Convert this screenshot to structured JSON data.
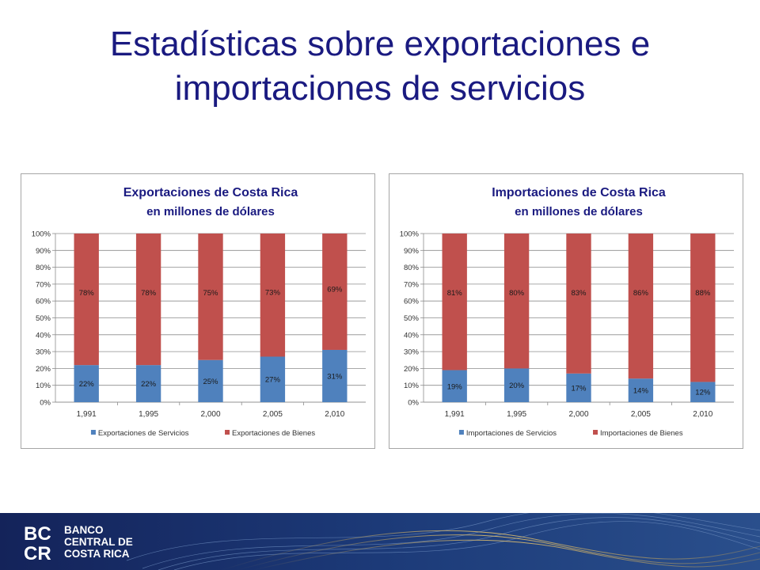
{
  "slide": {
    "title_line1": "Estadísticas sobre exportaciones e",
    "title_line2": "importaciones de servicios"
  },
  "logo": {
    "mark_top": "BC",
    "mark_bottom": "CR",
    "line1": "BANCO",
    "line2": "CENTRAL DE",
    "line3": "COSTA RICA"
  },
  "colors": {
    "servicios": "#4f81bd",
    "bienes": "#c0504d",
    "title": "#1a1a80",
    "footer": "#16265e"
  },
  "chart_data": [
    {
      "type": "bar",
      "stacked": "percent",
      "title": "Exportaciones de Costa Rica",
      "subtitle": "en millones de dólares",
      "categories": [
        "1,991",
        "1,995",
        "2,000",
        "2,005",
        "2,010"
      ],
      "series": [
        {
          "name": "Exportaciones de Servicios",
          "values": [
            22,
            22,
            25,
            27,
            31
          ],
          "labels": [
            "22%",
            "22%",
            "25%",
            "27%",
            "31%"
          ]
        },
        {
          "name": "Exportaciones de Bienes",
          "values": [
            78,
            78,
            75,
            73,
            69
          ],
          "labels": [
            "78%",
            "78%",
            "75%",
            "73%",
            "69%"
          ]
        }
      ],
      "yticks": [
        "0%",
        "10%",
        "20%",
        "30%",
        "40%",
        "50%",
        "60%",
        "70%",
        "80%",
        "90%",
        "100%"
      ],
      "ylim": [
        0,
        100
      ],
      "grid": true,
      "legend": "bottom"
    },
    {
      "type": "bar",
      "stacked": "percent",
      "title": "Importaciones de Costa Rica",
      "subtitle": "en millones de dólares",
      "categories": [
        "1,991",
        "1,995",
        "2,000",
        "2,005",
        "2,010"
      ],
      "series": [
        {
          "name": "Importaciones de Servicios",
          "values": [
            19,
            20,
            17,
            14,
            12
          ],
          "labels": [
            "19%",
            "20%",
            "17%",
            "14%",
            "12%"
          ]
        },
        {
          "name": "Importaciones de Bienes",
          "values": [
            81,
            80,
            83,
            86,
            88
          ],
          "labels": [
            "81%",
            "80%",
            "83%",
            "86%",
            "88%"
          ]
        }
      ],
      "yticks": [
        "0%",
        "10%",
        "20%",
        "30%",
        "40%",
        "50%",
        "60%",
        "70%",
        "80%",
        "90%",
        "100%"
      ],
      "ylim": [
        0,
        100
      ],
      "grid": true,
      "legend": "bottom"
    }
  ]
}
